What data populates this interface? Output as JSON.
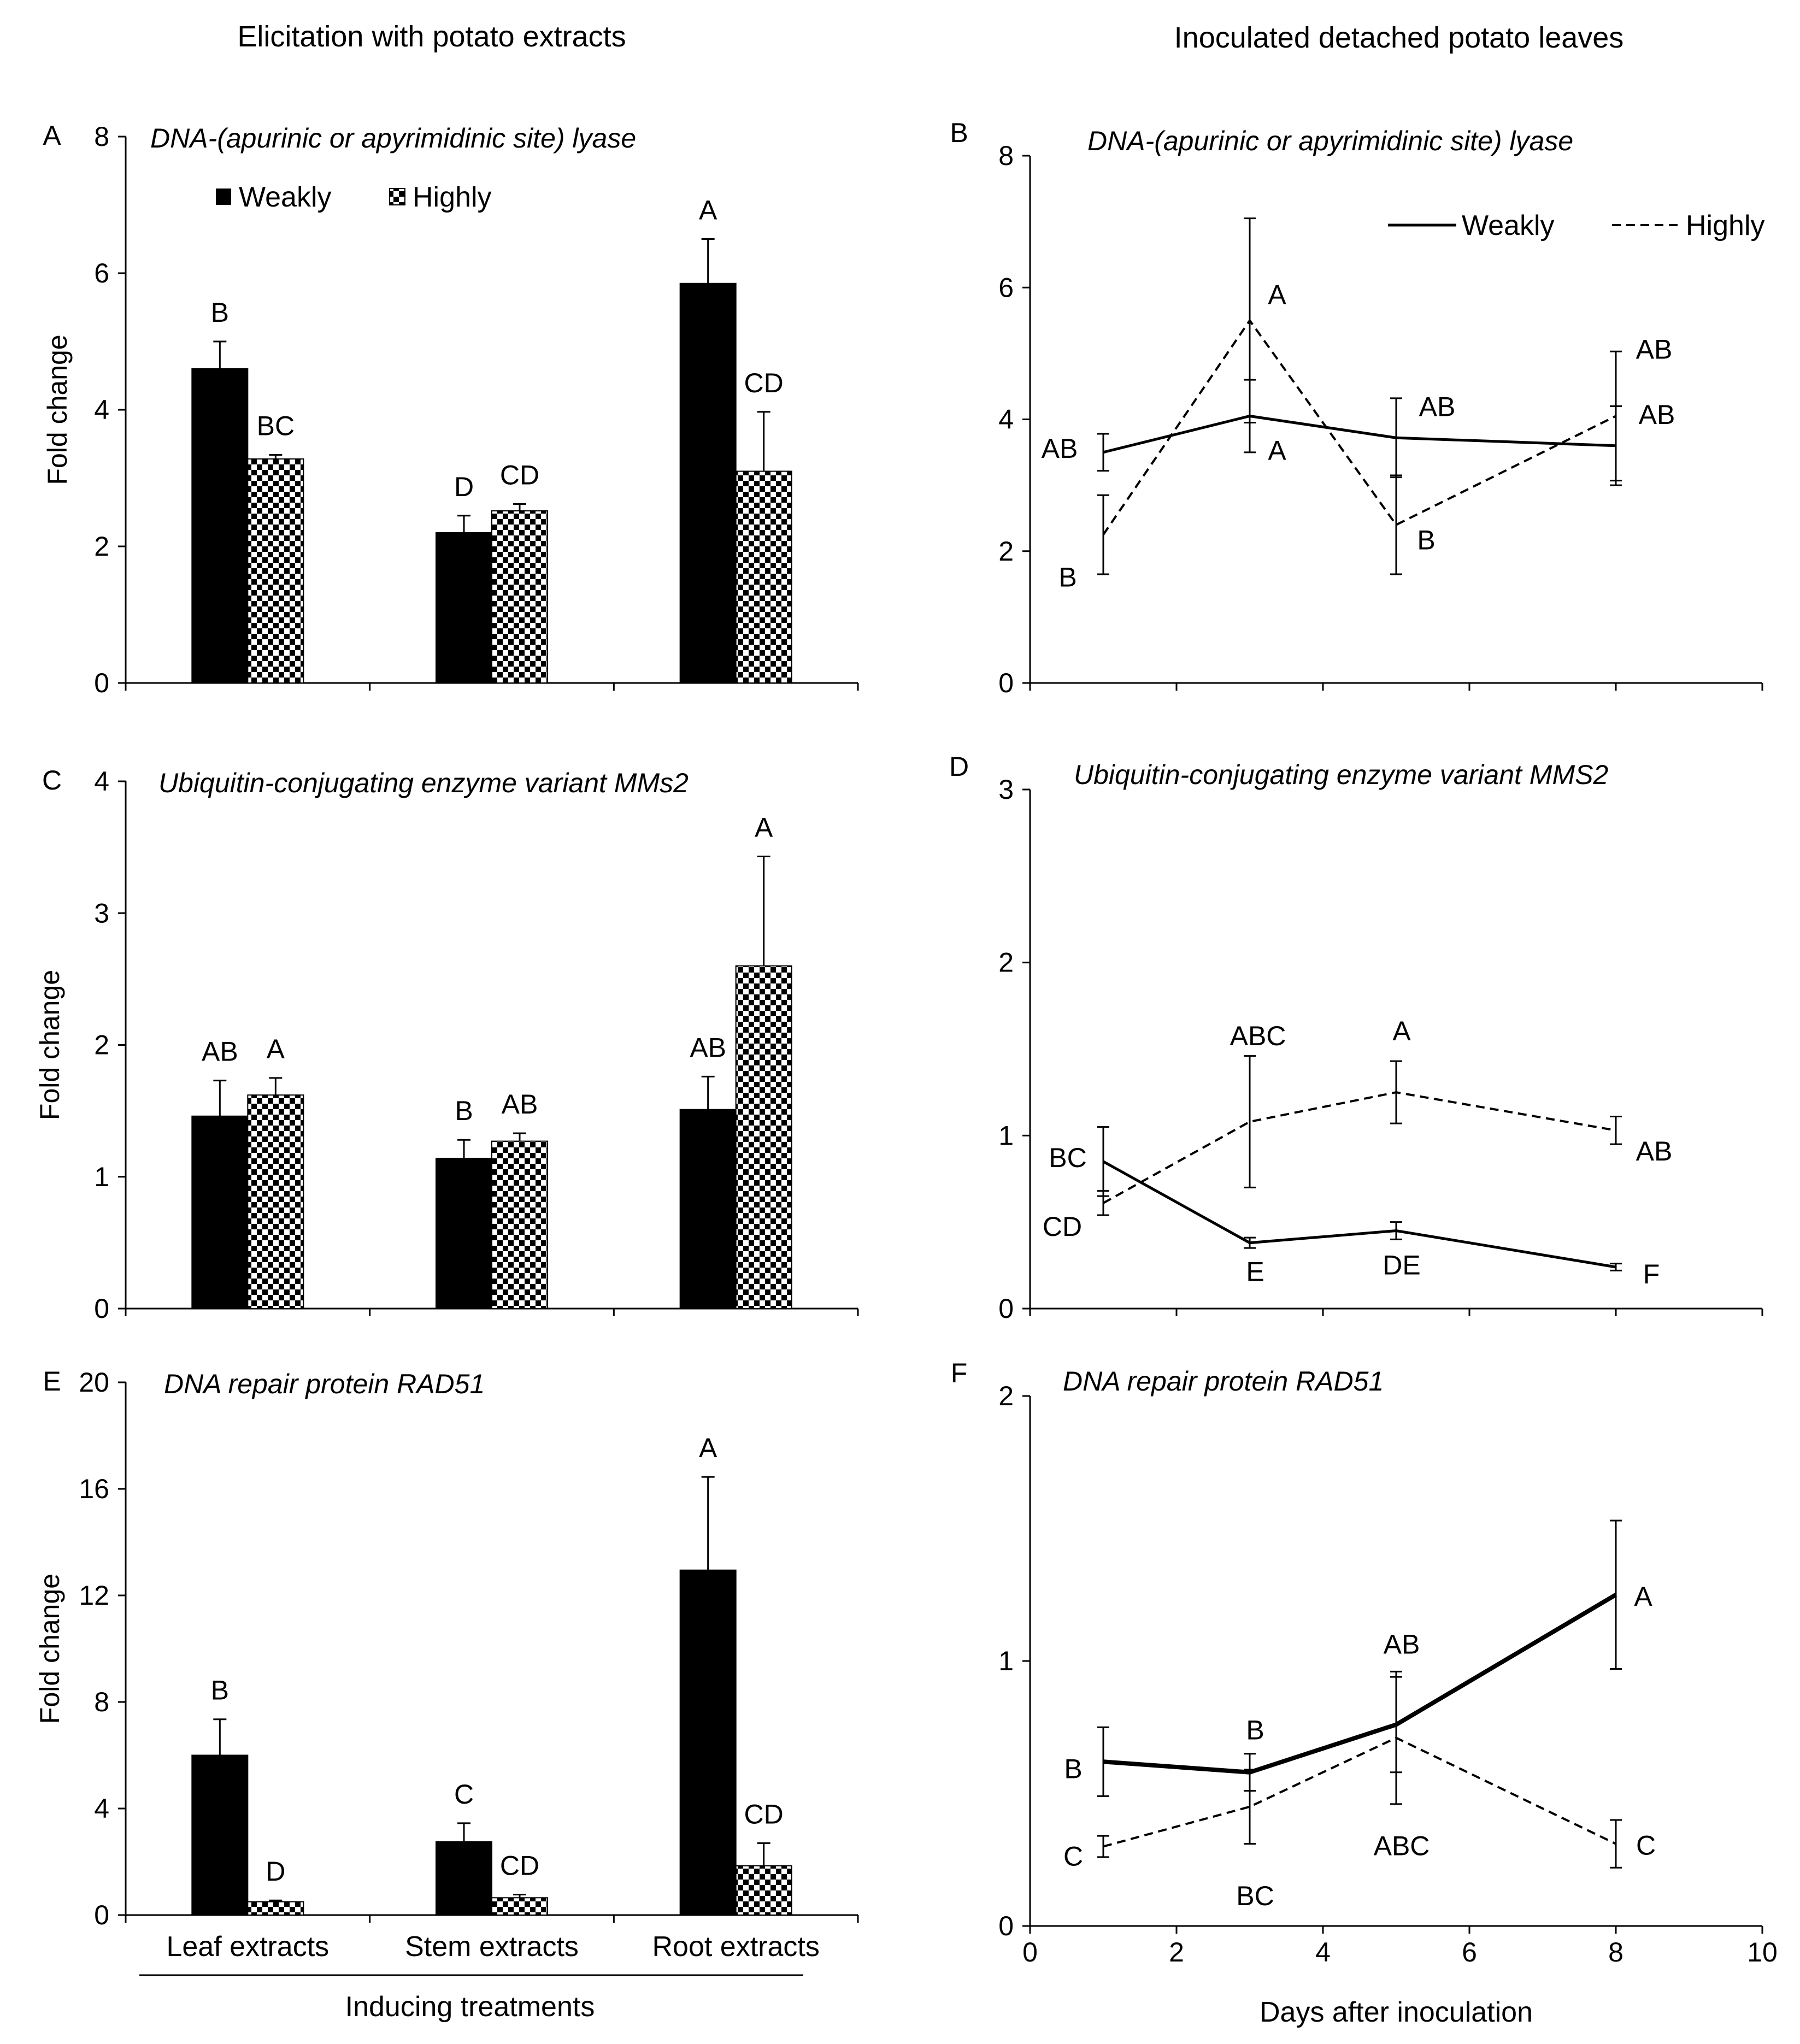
{
  "headers": {
    "left": "Elicitation with potato extracts",
    "right": "Inoculated detached potato leaves"
  },
  "legend": {
    "weakly": "Weakly",
    "highly": "Highly"
  },
  "colors": {
    "weakly": "#000000",
    "highly_pattern": "#000000",
    "background": "#ffffff"
  },
  "bar_axis": {
    "categories": [
      "Leaf extracts",
      "Stem extracts",
      "Root extracts"
    ],
    "xlabel": "Inducing treatments",
    "ylabel": "Fold change"
  },
  "line_axis": {
    "xlabel": "Days after inoculation",
    "xlim": [
      0,
      10
    ],
    "xticks": [
      "0",
      "2",
      "4",
      "6",
      "8",
      "10"
    ]
  },
  "chart_data": [
    {
      "panel": "A",
      "type": "bar",
      "title": "DNA-(apurinic or apyrimidinic site) lyase",
      "categories": [
        "Leaf extracts",
        "Stem extracts",
        "Root extracts"
      ],
      "ylabel": "Fold change",
      "ylim": [
        0,
        8
      ],
      "yticks": [
        "0",
        "2",
        "4",
        "6",
        "8"
      ],
      "series": [
        {
          "name": "Weakly",
          "values": [
            4.6,
            2.2,
            5.85
          ],
          "errors": [
            0.4,
            0.25,
            0.65
          ],
          "letters": [
            "B",
            "D",
            "A"
          ]
        },
        {
          "name": "Highly",
          "values": [
            3.28,
            2.52,
            3.1
          ],
          "errors": [
            0.06,
            0.1,
            0.87
          ],
          "letters": [
            "BC",
            "CD",
            "CD"
          ]
        }
      ]
    },
    {
      "panel": "B",
      "type": "line",
      "title": "DNA-(apurinic or apyrimidinic site) lyase",
      "ylim": [
        0,
        8
      ],
      "yticks": [
        "0",
        "2",
        "4",
        "6",
        "8"
      ],
      "x": [
        1,
        3,
        5,
        8
      ],
      "series": [
        {
          "name": "Weakly",
          "values": [
            3.5,
            4.05,
            3.72,
            3.6
          ],
          "errors": [
            0.28,
            0.55,
            0.6,
            0.6
          ],
          "letters": [
            "AB",
            "A",
            "AB",
            "AB"
          ]
        },
        {
          "name": "Highly",
          "values": [
            2.25,
            5.5,
            2.4,
            4.05
          ],
          "errors": [
            0.6,
            1.55,
            0.75,
            0.98
          ],
          "letters": [
            "B",
            "A",
            "B",
            "AB"
          ]
        }
      ]
    },
    {
      "panel": "C",
      "type": "bar",
      "title": "Ubiquitin-conjugating enzyme variant MMs2",
      "categories": [
        "Leaf extracts",
        "Stem extracts",
        "Root extracts"
      ],
      "ylabel": "Fold change",
      "ylim": [
        0,
        4
      ],
      "yticks": [
        "0",
        "1",
        "2",
        "3",
        "4"
      ],
      "series": [
        {
          "name": "Weakly",
          "values": [
            1.46,
            1.14,
            1.51
          ],
          "errors": [
            0.27,
            0.14,
            0.25
          ],
          "letters": [
            "AB",
            "B",
            "AB"
          ]
        },
        {
          "name": "Highly",
          "values": [
            1.62,
            1.27,
            2.6
          ],
          "errors": [
            0.13,
            0.06,
            0.83
          ],
          "letters": [
            "A",
            "AB",
            "A"
          ]
        }
      ]
    },
    {
      "panel": "D",
      "type": "line",
      "title": "Ubiquitin-conjugating enzyme variant MMS2",
      "ylim": [
        0,
        3
      ],
      "yticks": [
        "0",
        "1",
        "2",
        "3"
      ],
      "x": [
        1,
        3,
        5,
        8
      ],
      "series": [
        {
          "name": "Weakly",
          "values": [
            0.85,
            0.38,
            0.45,
            0.24
          ],
          "errors": [
            0.2,
            0.03,
            0.05,
            0.02
          ],
          "letters": [
            "BC",
            "E",
            "DE",
            "F"
          ]
        },
        {
          "name": "Highly",
          "values": [
            0.61,
            1.08,
            1.25,
            1.03
          ],
          "errors": [
            0.07,
            0.38,
            0.18,
            0.08
          ],
          "letters": [
            "CD",
            "ABC",
            "A",
            "AB"
          ]
        }
      ]
    },
    {
      "panel": "E",
      "type": "bar",
      "title": "DNA repair protein RAD51",
      "categories": [
        "Leaf extracts",
        "Stem extracts",
        "Root extracts"
      ],
      "ylabel": "Fold change",
      "ylim": [
        0,
        20
      ],
      "yticks": [
        "0",
        "4",
        "8",
        "12",
        "16",
        "20"
      ],
      "series": [
        {
          "name": "Weakly",
          "values": [
            6.0,
            2.75,
            12.95
          ],
          "errors": [
            1.35,
            0.7,
            3.5
          ],
          "letters": [
            "B",
            "C",
            "A"
          ]
        },
        {
          "name": "Highly",
          "values": [
            0.5,
            0.65,
            1.85
          ],
          "errors": [
            0.05,
            0.12,
            0.85
          ],
          "letters": [
            "D",
            "CD",
            "CD"
          ]
        }
      ]
    },
    {
      "panel": "F",
      "type": "line",
      "title": "DNA repair protein RAD51",
      "ylim": [
        0,
        2
      ],
      "yticks": [
        "0",
        "1",
        "2"
      ],
      "x": [
        1,
        3,
        5,
        8
      ],
      "series": [
        {
          "name": "Weakly",
          "values": [
            0.62,
            0.58,
            0.76,
            1.25
          ],
          "errors": [
            0.13,
            0.07,
            0.18,
            0.28
          ],
          "letters": [
            "B",
            "B",
            "AB",
            "A"
          ]
        },
        {
          "name": "Highly",
          "values": [
            0.3,
            0.45,
            0.71,
            0.31
          ],
          "errors": [
            0.04,
            0.14,
            0.25,
            0.09
          ],
          "letters": [
            "C",
            "BC",
            "ABC",
            "C"
          ]
        }
      ]
    }
  ]
}
